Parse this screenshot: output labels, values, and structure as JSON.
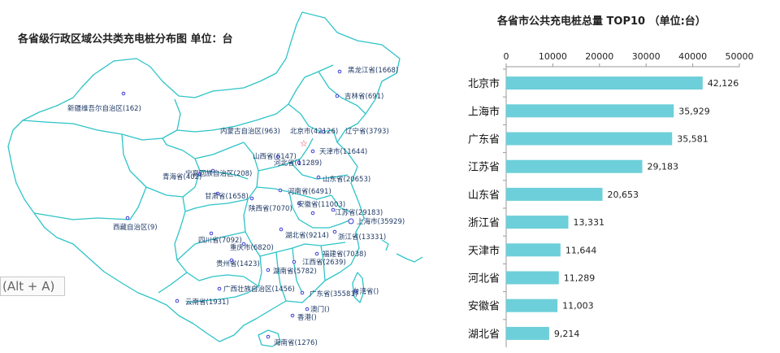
{
  "map": {
    "title": "各省级行政区域公共类充电桩分布图   单位：台",
    "provinces": [
      {
        "label": "黑龙江省(1668)"
      },
      {
        "label": "吉林省(691)"
      },
      {
        "label": "新疆维吾尔自治区(162)"
      },
      {
        "label": "内蒙古自治区(963)"
      },
      {
        "label": "北京市(42126)"
      },
      {
        "label": "辽宁省(3793)"
      },
      {
        "label": "天津市(11644)"
      },
      {
        "label": "山西省(6147)"
      },
      {
        "label": "河北省(11289)"
      },
      {
        "label": "宁夏回族自治区(208)"
      },
      {
        "label": "山东省(20653)"
      },
      {
        "label": "青海省(402)"
      },
      {
        "label": "甘肃省(1658)"
      },
      {
        "label": "河南省(6491)"
      },
      {
        "label": "陕西省(7070)"
      },
      {
        "label": "安徽省(11003)"
      },
      {
        "label": "江苏省(29183)"
      },
      {
        "label": "上海市(35929)"
      },
      {
        "label": "西藏自治区(9)"
      },
      {
        "label": "湖北省(9214)"
      },
      {
        "label": "浙江省(13331)"
      },
      {
        "label": "四川省(7092)"
      },
      {
        "label": "重庆市(6820)"
      },
      {
        "label": "福建省(7038)"
      },
      {
        "label": "贵州省(1423)"
      },
      {
        "label": "江西省(2639)"
      },
      {
        "label": "湖南省(5782)"
      },
      {
        "label": "广西壮族自治区(1456)"
      },
      {
        "label": "广东省(35581)"
      },
      {
        "label": "台湾省()"
      },
      {
        "label": "云南省(1931)"
      },
      {
        "label": "澳门()"
      },
      {
        "label": "香港()"
      },
      {
        "label": "海南省(1276)"
      }
    ]
  },
  "shortcut_hint": "(Alt + A)",
  "colors": {
    "bar": "#6dcfd9",
    "map_border": "#2ec4c8",
    "dot": "#3b3bd6",
    "capital_star": "#e0303a"
  },
  "chart_data": {
    "type": "bar",
    "orientation": "horizontal",
    "title": "各省市公共充电桩总量  TOP10   （单位:台）",
    "categories": [
      "北京市",
      "上海市",
      "广东省",
      "江苏省",
      "山东省",
      "浙江省",
      "天津市",
      "河北省",
      "安徽省",
      "湖北省"
    ],
    "values": [
      42126,
      35929,
      35581,
      29183,
      20653,
      13331,
      11644,
      11289,
      11003,
      9214
    ],
    "value_labels": [
      "42,126",
      "35,929",
      "35,581",
      "29,183",
      "20,653",
      "13,331",
      "11,644",
      "11,289",
      "11,003",
      "9,214"
    ],
    "xlim": [
      0,
      50000
    ],
    "xticks": [
      0,
      10000,
      20000,
      30000,
      40000,
      50000
    ],
    "axis_position": "top",
    "grid": false
  }
}
